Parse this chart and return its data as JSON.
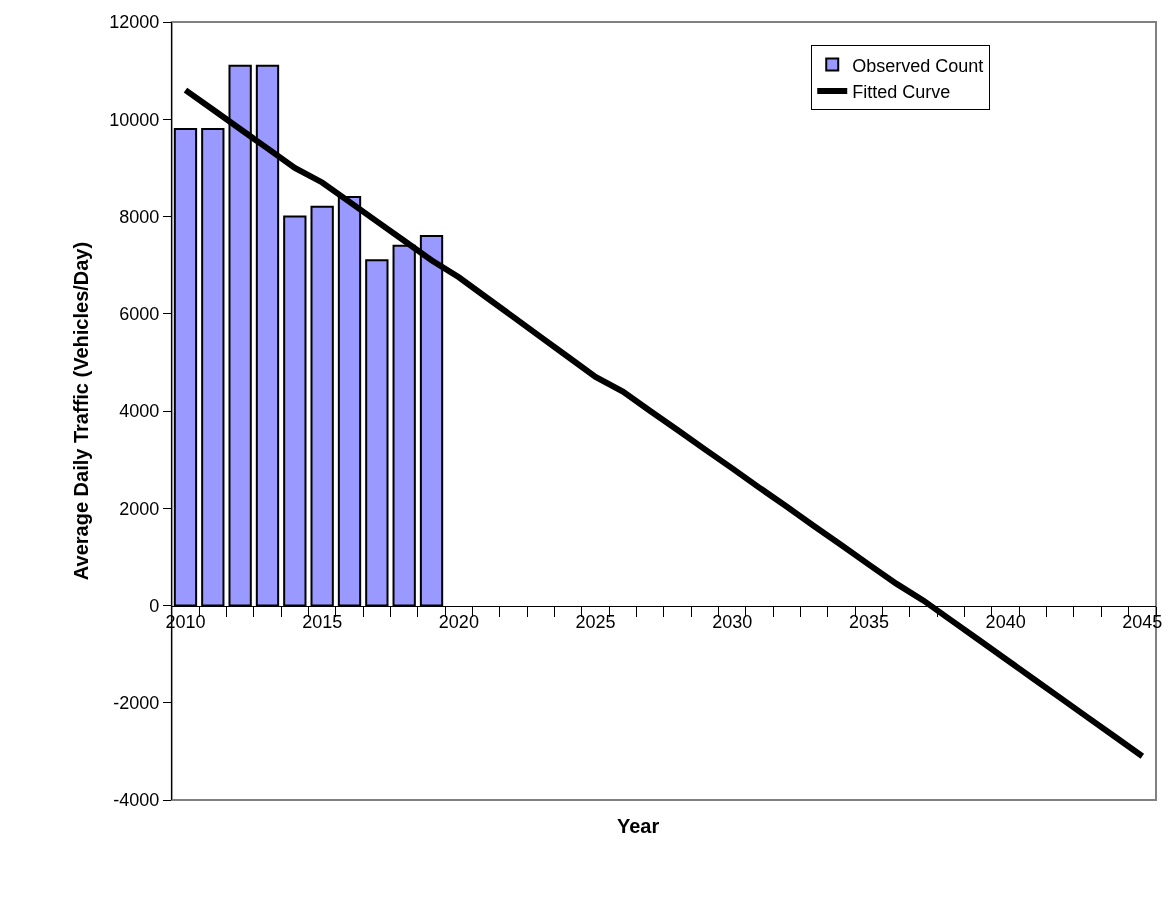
{
  "chart_data": {
    "type": "bar",
    "xlabel": "Year",
    "ylabel": "Average Daily Traffic (Vehicles/Day)",
    "categories": [
      "2010",
      null,
      null,
      null,
      null,
      "2015",
      null,
      null,
      null,
      null,
      "2020",
      null,
      null,
      null,
      null,
      "2025",
      null,
      null,
      null,
      null,
      "2030",
      null,
      null,
      null,
      null,
      "2035",
      null,
      null,
      null,
      null,
      "2040",
      null,
      null,
      null,
      null,
      "2045"
    ],
    "series": [
      {
        "name": "Observed Count",
        "color": "#9999ff",
        "values": [
          9800,
          9800,
          11100,
          11100,
          8000,
          8200,
          8400,
          7100,
          7400,
          7600,
          null,
          null,
          null,
          null,
          null,
          null,
          null,
          null,
          null,
          null,
          null,
          null,
          null,
          null,
          null,
          null,
          null,
          null,
          null,
          null,
          null,
          null,
          null,
          null,
          null,
          null
        ]
      },
      {
        "name": "Fitted Curve",
        "type": "line",
        "color": "#000000",
        "values": [
          10600,
          10200,
          9800,
          9400,
          9000,
          8700,
          8300,
          7900,
          7500,
          7100,
          6750,
          6340,
          5930,
          5520,
          5110,
          4700,
          4400,
          4000,
          3610,
          3210,
          2820,
          2420,
          2030,
          1630,
          1240,
          840,
          450,
          100,
          -300,
          -700,
          -1100,
          -1500,
          -1900,
          -2300,
          -2700,
          -3100
        ]
      }
    ],
    "ylim": [
      -4000,
      12000
    ],
    "yticks": [
      -4000,
      -2000,
      0,
      2000,
      4000,
      6000,
      8000,
      10000,
      12000
    ],
    "grid": false,
    "legend": "top right"
  }
}
